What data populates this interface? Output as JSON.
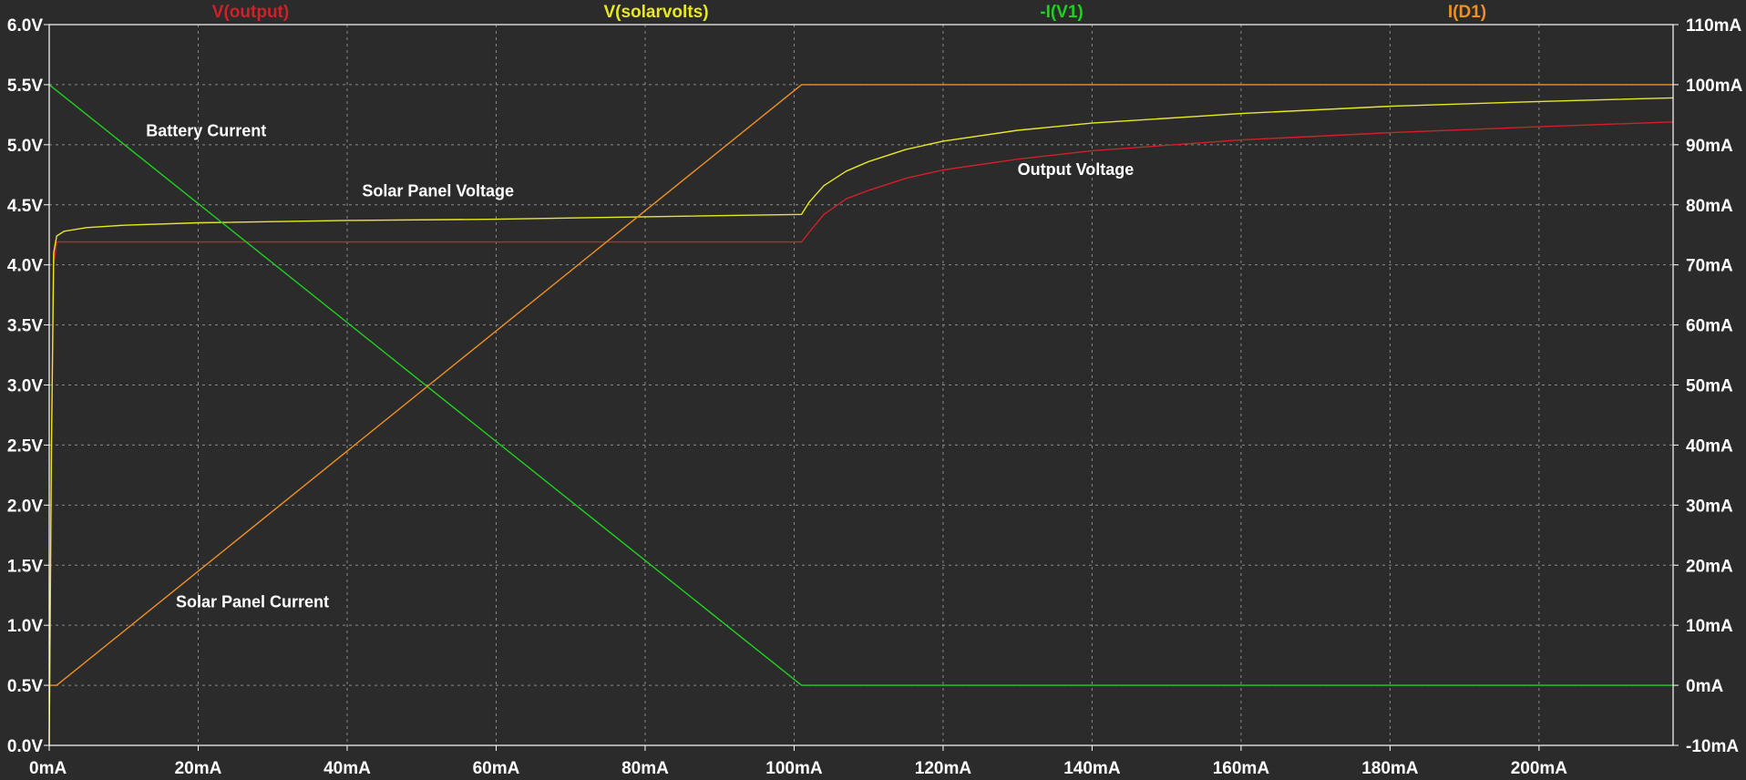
{
  "chart_data": {
    "type": "line",
    "grid": true,
    "x_axis": {
      "unit": "mA",
      "range": [
        0,
        218
      ],
      "ticks": [
        0,
        20,
        40,
        60,
        80,
        100,
        120,
        140,
        160,
        180,
        200
      ],
      "tick_labels": [
        "0mA",
        "20mA",
        "40mA",
        "60mA",
        "80mA",
        "100mA",
        "120mA",
        "140mA",
        "160mA",
        "180mA",
        "200mA"
      ]
    },
    "left_axis": {
      "unit": "V",
      "range": [
        0,
        6
      ],
      "ticks": [
        0,
        0.5,
        1,
        1.5,
        2,
        2.5,
        3,
        3.5,
        4,
        4.5,
        5,
        5.5,
        6
      ],
      "tick_labels": [
        "0.0V",
        "0.5V",
        "1.0V",
        "1.5V",
        "2.0V",
        "2.5V",
        "3.0V",
        "3.5V",
        "4.0V",
        "4.5V",
        "5.0V",
        "5.5V",
        "6.0V"
      ]
    },
    "right_axis": {
      "unit": "mA",
      "range": [
        -10,
        110
      ],
      "ticks": [
        -10,
        0,
        10,
        20,
        30,
        40,
        50,
        60,
        70,
        80,
        90,
        100,
        110
      ],
      "tick_labels": [
        "-10mA",
        "0mA",
        "10mA",
        "20mA",
        "30mA",
        "40mA",
        "50mA",
        "60mA",
        "70mA",
        "80mA",
        "90mA",
        "100mA",
        "110mA"
      ]
    },
    "series": [
      {
        "name": "V(output)",
        "color": "#d0202a",
        "axis": "left",
        "x": [
          0,
          0.3,
          0.6,
          1,
          2,
          5,
          20,
          40,
          60,
          80,
          101,
          102,
          104,
          107,
          110,
          115,
          120,
          130,
          140,
          160,
          180,
          200,
          218
        ],
        "y": [
          0,
          2.5,
          4.0,
          4.19,
          4.19,
          4.19,
          4.19,
          4.19,
          4.19,
          4.19,
          4.19,
          4.27,
          4.42,
          4.55,
          4.62,
          4.72,
          4.79,
          4.88,
          4.95,
          5.04,
          5.1,
          5.15,
          5.19
        ]
      },
      {
        "name": "V(solarvolts)",
        "color": "#e8e820",
        "axis": "left",
        "x": [
          0,
          0.3,
          0.6,
          1,
          2,
          5,
          10,
          20,
          40,
          60,
          80,
          101,
          102,
          104,
          107,
          110,
          115,
          120,
          130,
          140,
          160,
          180,
          200,
          218
        ],
        "y": [
          0,
          2.5,
          4.1,
          4.24,
          4.28,
          4.31,
          4.33,
          4.35,
          4.37,
          4.38,
          4.4,
          4.42,
          4.52,
          4.66,
          4.78,
          4.86,
          4.96,
          5.03,
          5.12,
          5.18,
          5.26,
          5.32,
          5.36,
          5.39
        ]
      },
      {
        "name": "-I(V1)",
        "color": "#20d020",
        "axis": "right",
        "x": [
          0,
          101,
          218
        ],
        "y": [
          100,
          0,
          0
        ]
      },
      {
        "name": "I(D1)",
        "color": "#f09020",
        "axis": "right",
        "x": [
          0,
          1,
          101,
          218
        ],
        "y": [
          0,
          0,
          100,
          100
        ]
      }
    ],
    "annotations": [
      {
        "text": "Battery Current",
        "x": 13,
        "y": 5.07
      },
      {
        "text": "Solar Panel Voltage",
        "x": 42,
        "y": 4.57
      },
      {
        "text": "Output Voltage",
        "x": 130,
        "y": 4.75
      },
      {
        "text": "Solar Panel Current",
        "x": 17,
        "y": 1.15
      }
    ]
  }
}
